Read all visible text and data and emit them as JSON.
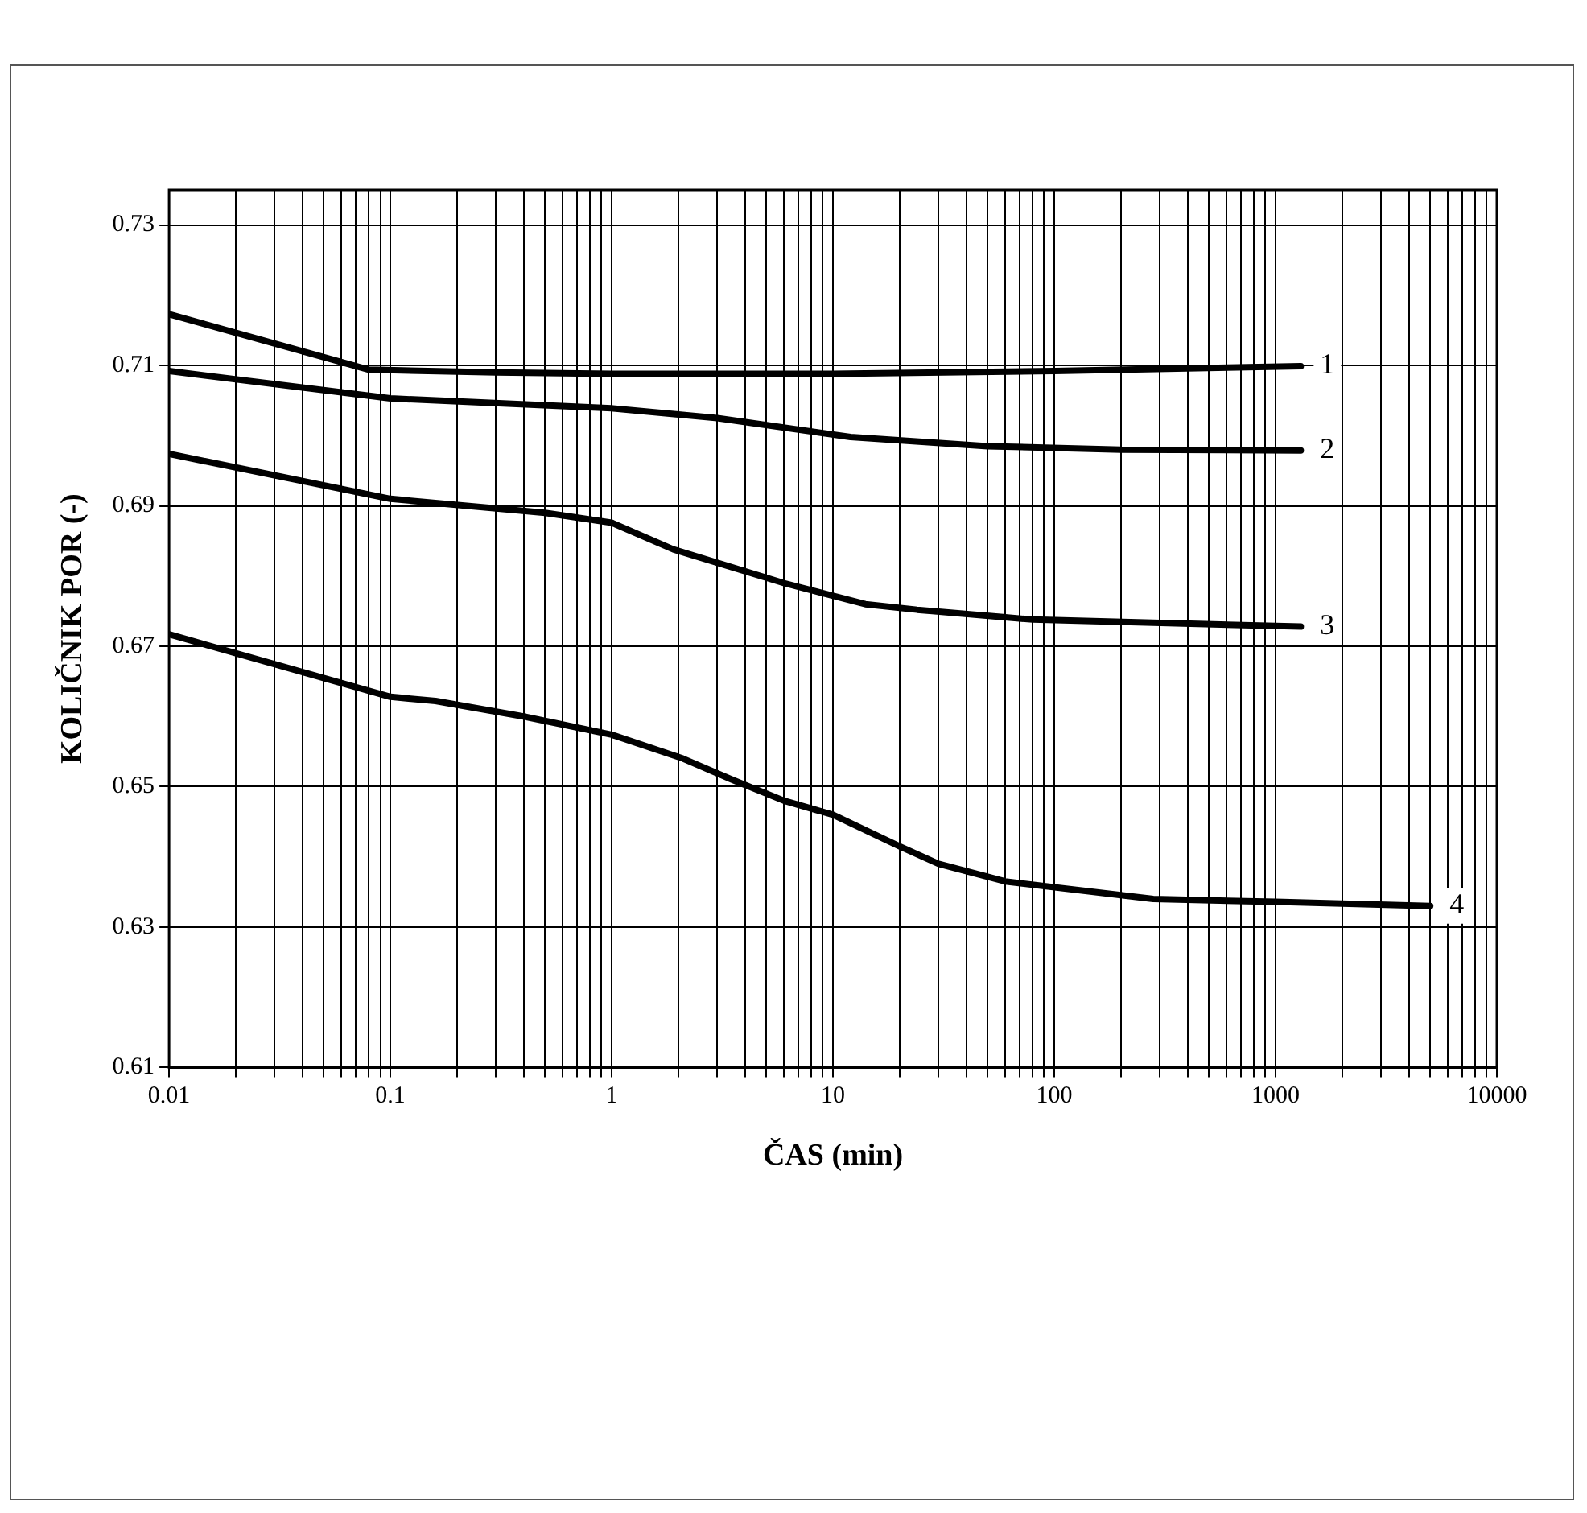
{
  "chart_data": {
    "type": "line",
    "xlabel": "ČAS (min)",
    "ylabel": "KOLIČNIK POR (-)",
    "log": "x",
    "grid": true,
    "legend": false,
    "marker": "none",
    "line_style": "solid",
    "xlim": [
      0.01,
      10000
    ],
    "ylim": [
      0.61,
      0.735
    ],
    "xticks": [
      0.01,
      {
        "value": 0.02,
        "label": null
      },
      {
        "value": 0.03,
        "label": null
      },
      {
        "value": 0.04,
        "label": null
      },
      {
        "value": 0.05,
        "label": null
      },
      {
        "value": 0.06,
        "label": null
      },
      {
        "value": 0.07,
        "label": null
      },
      {
        "value": 0.08,
        "label": null
      },
      {
        "value": 0.09,
        "label": null
      },
      0.1,
      {
        "value": 0.2,
        "label": null
      },
      {
        "value": 0.3,
        "label": null
      },
      {
        "value": 0.4,
        "label": null
      },
      {
        "value": 0.5,
        "label": null
      },
      {
        "value": 0.6,
        "label": null
      },
      {
        "value": 0.7,
        "label": null
      },
      {
        "value": 0.8,
        "label": null
      },
      {
        "value": 0.9,
        "label": null
      },
      1,
      {
        "value": 2,
        "label": null
      },
      {
        "value": 3,
        "label": null
      },
      {
        "value": 4,
        "label": null
      },
      {
        "value": 5,
        "label": null
      },
      {
        "value": 6,
        "label": null
      },
      {
        "value": 7,
        "label": null
      },
      {
        "value": 8,
        "label": null
      },
      {
        "value": 9,
        "label": null
      },
      10,
      {
        "value": 20,
        "label": null
      },
      {
        "value": 30,
        "label": null
      },
      {
        "value": 40,
        "label": null
      },
      {
        "value": 50,
        "label": null
      },
      {
        "value": 60,
        "label": null
      },
      {
        "value": 70,
        "label": null
      },
      {
        "value": 80,
        "label": null
      },
      {
        "value": 90,
        "label": null
      },
      100,
      {
        "value": 200,
        "label": null
      },
      {
        "value": 300,
        "label": null
      },
      {
        "value": 400,
        "label": null
      },
      {
        "value": 500,
        "label": null
      },
      {
        "value": 600,
        "label": null
      },
      {
        "value": 700,
        "label": null
      },
      {
        "value": 800,
        "label": null
      },
      {
        "value": 900,
        "label": null
      },
      1000,
      {
        "value": 2000,
        "label": null
      },
      {
        "value": 3000,
        "label": null
      },
      {
        "value": 4000,
        "label": null
      },
      {
        "value": 5000,
        "label": null
      },
      {
        "value": 6000,
        "label": null
      },
      {
        "value": 7000,
        "label": null
      },
      {
        "value": 8000,
        "label": null
      },
      {
        "value": 9000,
        "label": null
      },
      10000
    ],
    "yticks": [
      0.61,
      0.63,
      0.65,
      0.67,
      0.69,
      0.71,
      0.73
    ],
    "series": [
      {
        "name": "1",
        "color": "#000000",
        "x": [
          0.01,
          0.08,
          0.3,
          1,
          10,
          100,
          1300
        ],
        "values": [
          0.7173,
          0.7094,
          0.709,
          0.7088,
          0.7088,
          0.7092,
          0.7099
        ]
      },
      {
        "name": "2",
        "color": "#000000",
        "x": [
          0.01,
          0.1,
          1,
          3,
          12,
          50,
          200,
          1300
        ],
        "values": [
          0.7092,
          0.7053,
          0.7039,
          0.7025,
          0.6998,
          0.6985,
          0.698,
          0.6979
        ]
      },
      {
        "name": "3",
        "color": "#000000",
        "x": [
          0.01,
          0.1,
          0.5,
          1,
          1.9,
          6,
          14,
          24,
          80,
          1300
        ],
        "values": [
          0.6974,
          0.691,
          0.689,
          0.6876,
          0.6838,
          0.679,
          0.676,
          0.6752,
          0.6738,
          0.6728
        ]
      },
      {
        "name": "4",
        "color": "#000000",
        "x": [
          0.01,
          0.1,
          0.16,
          0.4,
          1,
          2.1,
          3.5,
          6,
          10,
          20,
          30,
          60,
          280,
          1000,
          5000
        ],
        "values": [
          0.6717,
          0.6628,
          0.6622,
          0.66,
          0.6574,
          0.654,
          0.651,
          0.648,
          0.646,
          0.6415,
          0.639,
          0.6365,
          0.634,
          0.6336,
          0.633
        ]
      }
    ]
  }
}
